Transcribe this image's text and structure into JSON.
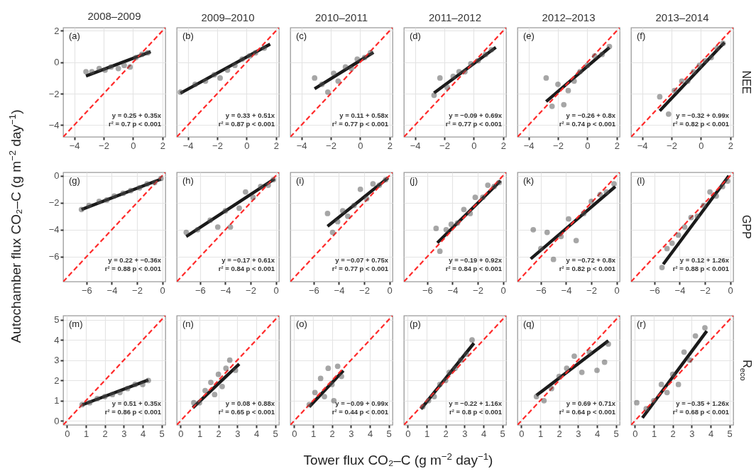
{
  "chart_data": [
    {
      "type": "scatter",
      "title": "2008–2009",
      "xlim": [
        -4.75,
        2.2
      ],
      "ylim": [
        -4.75,
        2.2
      ],
      "xticks": [
        -4,
        -2,
        0,
        2
      ],
      "yticks": [
        -4,
        -2,
        0,
        2
      ],
      "grid": true,
      "annotations": [
        "(a)",
        "y = 0.25 + 0.35x",
        "r² = 0.7  p < 0.001"
      ],
      "series": [
        {
          "type": "scatter",
          "marker": "circle",
          "color": "#4d4d4d",
          "x": [
            -3.2,
            -2.8,
            -2.3,
            -1.9,
            -1.5,
            -1.0,
            -0.6,
            -0.2,
            0.2,
            0.6,
            1.0
          ],
          "values": [
            -0.6,
            -0.6,
            -0.4,
            -0.5,
            -0.3,
            -0.4,
            -0.2,
            -0.3,
            0.3,
            0.5,
            0.6
          ]
        },
        {
          "type": "line",
          "color": "#1a1a1a",
          "x": [
            -3.2,
            1.2
          ],
          "values": [
            -0.87,
            0.67
          ]
        },
        {
          "type": "line",
          "color": "#ff2a2a",
          "line_style": "dashed",
          "x": [
            -4.75,
            2.2
          ],
          "values": [
            -4.75,
            2.2
          ]
        }
      ]
    },
    {
      "type": "scatter",
      "title": "2009–2010",
      "xlim": [
        -4.75,
        2.2
      ],
      "ylim": [
        -4.75,
        2.2
      ],
      "xticks": [
        -4,
        -2,
        0,
        2
      ],
      "yticks": [
        -4,
        -2,
        0,
        2
      ],
      "grid": true,
      "tick_labels": "x",
      "annotations": [
        "(b)",
        "y = 0.33 + 0.51x",
        "r² = 0.87  p < 0.001"
      ],
      "series": [
        {
          "type": "scatter",
          "marker": "circle",
          "color": "#4d4d4d",
          "x": [
            -4.5,
            -3.5,
            -2.8,
            -2.2,
            -1.8,
            -1.3,
            -0.8,
            -0.3,
            0.2,
            0.6,
            1.2
          ],
          "values": [
            -1.9,
            -1.4,
            -1.2,
            -0.8,
            -1.0,
            -0.5,
            -0.2,
            0.2,
            0.4,
            0.6,
            0.9
          ]
        },
        {
          "type": "line",
          "color": "#1a1a1a",
          "x": [
            -4.5,
            1.6
          ],
          "values": [
            -1.97,
            1.15
          ]
        },
        {
          "type": "line",
          "color": "#ff2a2a",
          "line_style": "dashed",
          "x": [
            -4.75,
            2.2
          ],
          "values": [
            -4.75,
            2.2
          ]
        }
      ]
    },
    {
      "type": "scatter",
      "title": "2010–2011",
      "xlim": [
        -4.75,
        2.2
      ],
      "ylim": [
        -4.75,
        2.2
      ],
      "xticks": [
        -4,
        -2,
        0,
        2
      ],
      "yticks": [
        -4,
        -2,
        0,
        2
      ],
      "grid": true,
      "tick_labels": "x",
      "annotations": [
        "(c)",
        "y = 0.11 + 0.58x",
        "r² = 0.77  p < 0.001"
      ],
      "series": [
        {
          "type": "scatter",
          "marker": "circle",
          "color": "#4d4d4d",
          "x": [
            -3.1,
            -2.6,
            -2.2,
            -1.8,
            -1.5,
            -1.0,
            -0.6,
            -0.2,
            0.3,
            0.7
          ],
          "values": [
            -1.0,
            -1.4,
            -1.9,
            -0.7,
            -1.2,
            -0.3,
            -0.4,
            0.2,
            0.3,
            0.6
          ]
        },
        {
          "type": "line",
          "color": "#1a1a1a",
          "x": [
            -3.1,
            0.9
          ],
          "values": [
            -1.69,
            0.63
          ]
        },
        {
          "type": "line",
          "color": "#ff2a2a",
          "line_style": "dashed",
          "x": [
            -4.75,
            2.2
          ],
          "values": [
            -4.75,
            2.2
          ]
        }
      ]
    },
    {
      "type": "scatter",
      "title": "2011–2012",
      "xlim": [
        -4.75,
        2.2
      ],
      "ylim": [
        -4.75,
        2.2
      ],
      "xticks": [
        -4,
        -2,
        0,
        2
      ],
      "yticks": [
        -4,
        -2,
        0,
        2
      ],
      "grid": true,
      "tick_labels": "x",
      "annotations": [
        "(d)",
        "y = −0.09 + 0.69x",
        "r² = 0.77  p < 0.001"
      ],
      "series": [
        {
          "type": "scatter",
          "marker": "circle",
          "color": "#4d4d4d",
          "x": [
            -2.7,
            -2.3,
            -1.8,
            -1.4,
            -1.0,
            -0.6,
            -0.2,
            0.3,
            0.8,
            1.2
          ],
          "values": [
            -2.1,
            -1.0,
            -1.6,
            -0.9,
            -0.6,
            -0.6,
            -0.1,
            0.1,
            0.5,
            0.8
          ]
        },
        {
          "type": "line",
          "color": "#1a1a1a",
          "x": [
            -2.7,
            1.5
          ],
          "values": [
            -1.95,
            0.95
          ]
        },
        {
          "type": "line",
          "color": "#ff2a2a",
          "line_style": "dashed",
          "x": [
            -4.75,
            2.2
          ],
          "values": [
            -4.75,
            2.2
          ]
        }
      ]
    },
    {
      "type": "scatter",
      "title": "2012–2013",
      "xlim": [
        -4.75,
        2.2
      ],
      "ylim": [
        -4.75,
        2.2
      ],
      "xticks": [
        -4,
        -2,
        0,
        2
      ],
      "yticks": [
        -4,
        -2,
        0,
        2
      ],
      "grid": true,
      "tick_labels": "x",
      "annotations": [
        "(e)",
        "y = −0.26 + 0.8x",
        "r² = 0.74  p < 0.001"
      ],
      "series": [
        {
          "type": "scatter",
          "marker": "circle",
          "color": "#4d4d4d",
          "x": [
            -2.8,
            -2.4,
            -2.0,
            -1.6,
            -1.3,
            -0.9,
            -0.5,
            0,
            0.5,
            1.0,
            1.5
          ],
          "values": [
            -1.0,
            -2.8,
            -1.4,
            -2.7,
            -1.8,
            -1.2,
            -0.6,
            -0.2,
            0.4,
            0.5,
            1.0
          ]
        },
        {
          "type": "line",
          "color": "#1a1a1a",
          "x": [
            -2.8,
            1.5
          ],
          "values": [
            -2.5,
            0.94
          ]
        },
        {
          "type": "line",
          "color": "#ff2a2a",
          "line_style": "dashed",
          "x": [
            -4.75,
            2.2
          ],
          "values": [
            -4.75,
            2.2
          ]
        }
      ]
    },
    {
      "type": "scatter",
      "title": "2013–2014",
      "y2label": "NEE",
      "xlim": [
        -4.75,
        2.2
      ],
      "ylim": [
        -4.75,
        2.2
      ],
      "xticks": [
        -4,
        -2,
        0,
        2
      ],
      "yticks": [
        -4,
        -2,
        0,
        2
      ],
      "grid": true,
      "tick_labels": "x",
      "annotations": [
        "(f)",
        "y = −0.32 + 0.99x",
        "r² = 0.82  p < 0.001"
      ],
      "series": [
        {
          "type": "scatter",
          "marker": "circle",
          "color": "#4d4d4d",
          "x": [
            -2.8,
            -2.2,
            -1.8,
            -1.3,
            -0.9,
            -0.5,
            -0.1,
            0.3,
            0.7,
            1.1,
            1.5
          ],
          "values": [
            -2.2,
            -3.3,
            -1.8,
            -1.2,
            -1.2,
            -0.6,
            -0.2,
            0.1,
            0.3,
            0.9,
            1.2
          ]
        },
        {
          "type": "line",
          "color": "#1a1a1a",
          "x": [
            -2.8,
            1.6
          ],
          "values": [
            -3.09,
            1.26
          ]
        },
        {
          "type": "line",
          "color": "#ff2a2a",
          "line_style": "dashed",
          "x": [
            -4.75,
            2.2
          ],
          "values": [
            -4.75,
            2.2
          ]
        }
      ]
    },
    {
      "type": "scatter",
      "ylabel": "Autochamber flux CO₂–C (g m$^{−2}$ day$^{−1}$)",
      "xlim": [
        -7.85,
        0.25
      ],
      "ylim": [
        -7.85,
        0.25
      ],
      "xticks": [
        -6,
        -4,
        -2,
        0
      ],
      "yticks": [
        -6,
        -4,
        -2,
        0
      ],
      "grid": true,
      "annotations": [
        "(g)",
        "y = 0.22 + −0.36x",
        "r² = 0.88  p < 0.001"
      ],
      "series": [
        {
          "type": "scatter",
          "marker": "circle",
          "color": "#4d4d4d",
          "x": [
            -6.4,
            -5.8,
            -5.0,
            -4.4,
            -3.8,
            -3.1,
            -2.5,
            -1.8,
            -1.2,
            -0.6,
            -0.1
          ],
          "values": [
            -2.5,
            -2.2,
            -1.9,
            -1.8,
            -1.5,
            -1.3,
            -1.1,
            -0.9,
            -0.6,
            -0.5,
            -0.2
          ]
        },
        {
          "type": "line",
          "color": "#1a1a1a",
          "x": [
            -6.4,
            -0.1
          ],
          "values": [
            -2.5,
            -0.25
          ]
        },
        {
          "type": "line",
          "color": "#ff2a2a",
          "line_style": "dashed",
          "x": [
            -7.85,
            0.25
          ],
          "values": [
            -7.85,
            0.25
          ]
        }
      ]
    },
    {
      "type": "scatter",
      "xlim": [
        -7.85,
        0.25
      ],
      "ylim": [
        -7.85,
        0.25
      ],
      "xticks": [
        -6,
        -4,
        -2,
        0
      ],
      "yticks": [
        -6,
        -4,
        -2,
        0
      ],
      "grid": true,
      "tick_labels": "x",
      "annotations": [
        "(h)",
        "y = −0.17 + 0.61x",
        "r² = 0.84  p < 0.001"
      ],
      "series": [
        {
          "type": "scatter",
          "marker": "circle",
          "color": "#4d4d4d",
          "x": [
            -7.1,
            -6.2,
            -5.2,
            -4.6,
            -4.0,
            -3.6,
            -2.9,
            -2.4,
            -1.8,
            -1.2,
            -0.6,
            -0.2
          ],
          "values": [
            -4.2,
            -4.0,
            -3.3,
            -3.8,
            -2.6,
            -3.8,
            -2.4,
            -1.2,
            -1.6,
            -0.8,
            -0.7,
            -0.3
          ]
        },
        {
          "type": "line",
          "color": "#1a1a1a",
          "x": [
            -7.1,
            -0.1
          ],
          "values": [
            -4.5,
            -0.23
          ]
        },
        {
          "type": "line",
          "color": "#ff2a2a",
          "line_style": "dashed",
          "x": [
            -7.85,
            0.25
          ],
          "values": [
            -7.85,
            0.25
          ]
        }
      ]
    },
    {
      "type": "scatter",
      "xlim": [
        -7.85,
        0.25
      ],
      "ylim": [
        -7.85,
        0.25
      ],
      "xticks": [
        -6,
        -4,
        -2,
        0
      ],
      "yticks": [
        -6,
        -4,
        -2,
        0
      ],
      "grid": true,
      "tick_labels": "x",
      "annotations": [
        "(i)",
        "y = −0.07 + 0.75x",
        "r² = 0.77  p < 0.001"
      ],
      "series": [
        {
          "type": "scatter",
          "marker": "circle",
          "color": "#4d4d4d",
          "x": [
            -4.9,
            -4.5,
            -4.1,
            -3.7,
            -3.3,
            -2.8,
            -2.3,
            -1.8,
            -1.3,
            -0.8,
            -0.3
          ],
          "values": [
            -2.8,
            -4.2,
            -3.4,
            -2.6,
            -3.0,
            -2.2,
            -1.0,
            -1.7,
            -0.6,
            -0.7,
            -0.3
          ]
        },
        {
          "type": "line",
          "color": "#1a1a1a",
          "x": [
            -4.9,
            -0.1
          ],
          "values": [
            -3.75,
            -0.15
          ]
        },
        {
          "type": "line",
          "color": "#ff2a2a",
          "line_style": "dashed",
          "x": [
            -7.85,
            0.25
          ],
          "values": [
            -7.85,
            0.25
          ]
        }
      ]
    },
    {
      "type": "scatter",
      "xlim": [
        -7.85,
        0.25
      ],
      "ylim": [
        -7.85,
        0.25
      ],
      "xticks": [
        -6,
        -4,
        -2,
        0
      ],
      "yticks": [
        -6,
        -4,
        -2,
        0
      ],
      "grid": true,
      "tick_labels": "x",
      "annotations": [
        "(j)",
        "y = −0.19 + 0.92x",
        "r² = 0.84  p < 0.001"
      ],
      "series": [
        {
          "type": "scatter",
          "marker": "circle",
          "color": "#4d4d4d",
          "x": [
            -5.3,
            -5.0,
            -4.5,
            -4.1,
            -3.6,
            -3.1,
            -2.6,
            -2.2,
            -1.6,
            -1.2,
            -0.7,
            -0.3
          ],
          "values": [
            -3.9,
            -5.6,
            -4.0,
            -3.6,
            -3.5,
            -2.5,
            -2.8,
            -1.6,
            -1.6,
            -0.7,
            -0.8,
            -0.5
          ]
        },
        {
          "type": "line",
          "color": "#1a1a1a",
          "x": [
            -5.2,
            -0.2
          ],
          "values": [
            -4.97,
            -0.37
          ]
        },
        {
          "type": "line",
          "color": "#ff2a2a",
          "line_style": "dashed",
          "x": [
            -7.85,
            0.25
          ],
          "values": [
            -7.85,
            0.25
          ]
        }
      ]
    },
    {
      "type": "scatter",
      "xlim": [
        -7.85,
        0.25
      ],
      "ylim": [
        -7.85,
        0.25
      ],
      "xticks": [
        -6,
        -4,
        -2,
        0
      ],
      "yticks": [
        -6,
        -4,
        -2,
        0
      ],
      "grid": true,
      "tick_labels": "x",
      "annotations": [
        "(k)",
        "y = −0.72 + 0.8x",
        "r² = 0.82  p < 0.001"
      ],
      "series": [
        {
          "type": "scatter",
          "marker": "circle",
          "color": "#4d4d4d",
          "x": [
            -6.6,
            -6.0,
            -5.5,
            -5.0,
            -4.4,
            -3.8,
            -3.2,
            -2.6,
            -2.0,
            -1.3,
            -0.8,
            -0.2
          ],
          "values": [
            -4.0,
            -5.4,
            -4.2,
            -6.2,
            -4.5,
            -3.2,
            -4.8,
            -2.8,
            -1.9,
            -1.4,
            -1.2,
            -0.6
          ]
        },
        {
          "type": "line",
          "color": "#1a1a1a",
          "x": [
            -6.8,
            -0.1
          ],
          "values": [
            -6.16,
            -0.8
          ]
        },
        {
          "type": "line",
          "color": "#ff2a2a",
          "line_style": "dashed",
          "x": [
            -7.85,
            0.25
          ],
          "values": [
            -7.85,
            0.25
          ]
        }
      ]
    },
    {
      "type": "scatter",
      "y2label": "GPP",
      "xlim": [
        -7.85,
        0.25
      ],
      "ylim": [
        -7.85,
        0.25
      ],
      "xticks": [
        -6,
        -4,
        -2,
        0
      ],
      "yticks": [
        -6,
        -4,
        -2,
        0
      ],
      "grid": true,
      "tick_labels": "x",
      "annotations": [
        "(l)",
        "y = 0.12 + 1.26x",
        "r² = 0.88  p < 0.001"
      ],
      "series": [
        {
          "type": "scatter",
          "marker": "circle",
          "color": "#4d4d4d",
          "x": [
            -5.4,
            -5.0,
            -4.6,
            -4.1,
            -3.6,
            -3.1,
            -2.6,
            -2.1,
            -1.6,
            -1.1,
            -0.6,
            -0.2
          ],
          "values": [
            -6.8,
            -5.4,
            -5.0,
            -4.4,
            -3.8,
            -3.1,
            -3.0,
            -2.2,
            -1.2,
            -1.5,
            -0.8,
            -0.4
          ]
        },
        {
          "type": "line",
          "color": "#1a1a1a",
          "x": [
            -5.3,
            -0.1
          ],
          "values": [
            -6.56,
            -0.01
          ]
        },
        {
          "type": "line",
          "color": "#ff2a2a",
          "line_style": "dashed",
          "x": [
            -7.85,
            0.25
          ],
          "values": [
            -7.85,
            0.25
          ]
        }
      ]
    },
    {
      "type": "scatter",
      "xlim": [
        -0.2,
        5.2
      ],
      "ylim": [
        -0.2,
        5.2
      ],
      "xticks": [
        0,
        1,
        2,
        3,
        4,
        5
      ],
      "yticks": [
        0,
        1,
        2,
        3,
        4,
        5
      ],
      "grid": true,
      "annotations": [
        "(m)",
        "y = 0.51 + 0.35x",
        "r² = 0.86  p < 0.001"
      ],
      "series": [
        {
          "type": "scatter",
          "marker": "circle",
          "color": "#4d4d4d",
          "x": [
            0.8,
            1.2,
            1.6,
            2.0,
            2.4,
            2.8,
            3.2,
            3.6,
            4.0,
            4.3
          ],
          "values": [
            0.8,
            0.9,
            1.1,
            1.2,
            1.3,
            1.4,
            1.6,
            1.8,
            1.8,
            2.0
          ]
        },
        {
          "type": "line",
          "color": "#1a1a1a",
          "x": [
            0.8,
            4.3
          ],
          "values": [
            0.79,
            2.02
          ]
        },
        {
          "type": "line",
          "color": "#ff2a2a",
          "line_style": "dashed",
          "x": [
            -0.2,
            5.2
          ],
          "values": [
            -0.2,
            5.2
          ]
        }
      ]
    },
    {
      "type": "scatter",
      "xlim": [
        -0.2,
        5.2
      ],
      "ylim": [
        -0.2,
        5.2
      ],
      "xticks": [
        0,
        1,
        2,
        3,
        4,
        5
      ],
      "yticks": [
        0,
        1,
        2,
        3,
        4,
        5
      ],
      "grid": true,
      "tick_labels": "x",
      "annotations": [
        "(n)",
        "y = 0.08 + 0.88x",
        "r² = 0.65  p < 0.001"
      ],
      "series": [
        {
          "type": "scatter",
          "marker": "circle",
          "color": "#4d4d4d",
          "x": [
            0.7,
            1.0,
            1.3,
            1.6,
            1.8,
            2.0,
            2.2,
            2.4,
            2.6,
            2.9
          ],
          "values": [
            0.9,
            0.9,
            1.5,
            1.9,
            1.3,
            2.3,
            1.7,
            2.6,
            3.0,
            2.5
          ]
        },
        {
          "type": "line",
          "color": "#1a1a1a",
          "x": [
            0.65,
            3.1
          ],
          "values": [
            0.65,
            2.81
          ]
        },
        {
          "type": "line",
          "color": "#ff2a2a",
          "line_style": "dashed",
          "x": [
            -0.2,
            5.2
          ],
          "values": [
            -0.2,
            5.2
          ]
        }
      ]
    },
    {
      "type": "scatter",
      "xlabel": "Tower flux CO₂–C (g m$^{−2}$ day$^{−1}$)",
      "xlim": [
        -0.2,
        5.2
      ],
      "ylim": [
        -0.2,
        5.2
      ],
      "xticks": [
        0,
        1,
        2,
        3,
        4,
        5
      ],
      "yticks": [
        0,
        1,
        2,
        3,
        4,
        5
      ],
      "grid": true,
      "tick_labels": "x",
      "annotations": [
        "(o)",
        "y = −0.09 + 0.99x",
        "r² = 0.44  p < 0.001"
      ],
      "series": [
        {
          "type": "scatter",
          "marker": "circle",
          "color": "#4d4d4d",
          "x": [
            0.8,
            1.1,
            1.4,
            1.6,
            1.8,
            2.0,
            2.1,
            2.3,
            2.5
          ],
          "values": [
            0.8,
            1.4,
            2.1,
            1.2,
            2.6,
            1.8,
            1.0,
            2.7,
            2.2
          ]
        },
        {
          "type": "line",
          "color": "#1a1a1a",
          "x": [
            0.8,
            2.6
          ],
          "values": [
            0.7,
            2.48
          ]
        },
        {
          "type": "line",
          "color": "#ff2a2a",
          "line_style": "dashed",
          "x": [
            -0.2,
            5.2
          ],
          "values": [
            -0.2,
            5.2
          ]
        }
      ]
    },
    {
      "type": "scatter",
      "xlim": [
        -0.2,
        5.2
      ],
      "ylim": [
        -0.2,
        5.2
      ],
      "xticks": [
        0,
        1,
        2,
        3,
        4,
        5
      ],
      "yticks": [
        0,
        1,
        2,
        3,
        4,
        5
      ],
      "grid": true,
      "tick_labels": "x",
      "annotations": [
        "(p)",
        "y = −0.22 + 1.16x",
        "r² = 0.8  p < 0.001"
      ],
      "series": [
        {
          "type": "scatter",
          "marker": "circle",
          "color": "#4d4d4d",
          "x": [
            0.8,
            1.1,
            1.4,
            1.7,
            2.0,
            2.2,
            2.5,
            2.8,
            3.1,
            3.4
          ],
          "values": [
            0.7,
            1.0,
            1.2,
            1.8,
            2.0,
            2.4,
            2.6,
            3.0,
            3.3,
            4.0
          ]
        },
        {
          "type": "line",
          "color": "#1a1a1a",
          "x": [
            0.7,
            3.5
          ],
          "values": [
            0.59,
            3.84
          ]
        },
        {
          "type": "line",
          "color": "#ff2a2a",
          "line_style": "dashed",
          "x": [
            -0.2,
            5.2
          ],
          "values": [
            -0.2,
            5.2
          ]
        }
      ]
    },
    {
      "type": "scatter",
      "xlim": [
        -0.2,
        5.2
      ],
      "ylim": [
        -0.2,
        5.2
      ],
      "xticks": [
        0,
        1,
        2,
        3,
        4,
        5
      ],
      "yticks": [
        0,
        1,
        2,
        3,
        4,
        5
      ],
      "grid": true,
      "tick_labels": "x",
      "annotations": [
        "(q)",
        "y = 0.69 + 0.71x",
        "r² = 0.64  p < 0.001"
      ],
      "series": [
        {
          "type": "scatter",
          "marker": "circle",
          "color": "#4d4d4d",
          "x": [
            0.8,
            1.2,
            1.6,
            2.0,
            2.4,
            2.8,
            3.2,
            3.6,
            4.0,
            4.4,
            4.6
          ],
          "values": [
            1.2,
            1.0,
            1.6,
            2.2,
            2.6,
            3.2,
            2.4,
            3.4,
            2.5,
            2.9,
            3.8
          ]
        },
        {
          "type": "line",
          "color": "#1a1a1a",
          "x": [
            0.8,
            4.6
          ],
          "values": [
            1.26,
            3.96
          ]
        },
        {
          "type": "line",
          "color": "#ff2a2a",
          "line_style": "dashed",
          "x": [
            -0.2,
            5.2
          ],
          "values": [
            -0.2,
            5.2
          ]
        }
      ]
    },
    {
      "type": "scatter",
      "y2label": "R$_{eco}$",
      "xlim": [
        -0.2,
        5.2
      ],
      "ylim": [
        -0.2,
        5.2
      ],
      "xticks": [
        0,
        1,
        2,
        3,
        4,
        5
      ],
      "yticks": [
        0,
        1,
        2,
        3,
        4,
        5
      ],
      "grid": true,
      "tick_labels": "x",
      "annotations": [
        "(r)",
        "y = −0.35 + 1.26x",
        "r² = 0.68  p < 0.001"
      ],
      "series": [
        {
          "type": "scatter",
          "marker": "circle",
          "color": "#4d4d4d",
          "x": [
            0.1,
            0.6,
            1.0,
            1.4,
            1.7,
            2.0,
            2.3,
            2.6,
            2.9,
            3.2,
            3.7
          ],
          "values": [
            0.9,
            0.6,
            1.0,
            1.8,
            1.4,
            2.3,
            1.8,
            3.4,
            3.0,
            4.2,
            4.6
          ]
        },
        {
          "type": "line",
          "color": "#1a1a1a",
          "x": [
            0.4,
            3.8
          ],
          "values": [
            0.15,
            4.44
          ]
        },
        {
          "type": "line",
          "color": "#ff2a2a",
          "line_style": "dashed",
          "x": [
            -0.2,
            5.2
          ],
          "values": [
            -0.2,
            5.2
          ]
        }
      ]
    }
  ]
}
